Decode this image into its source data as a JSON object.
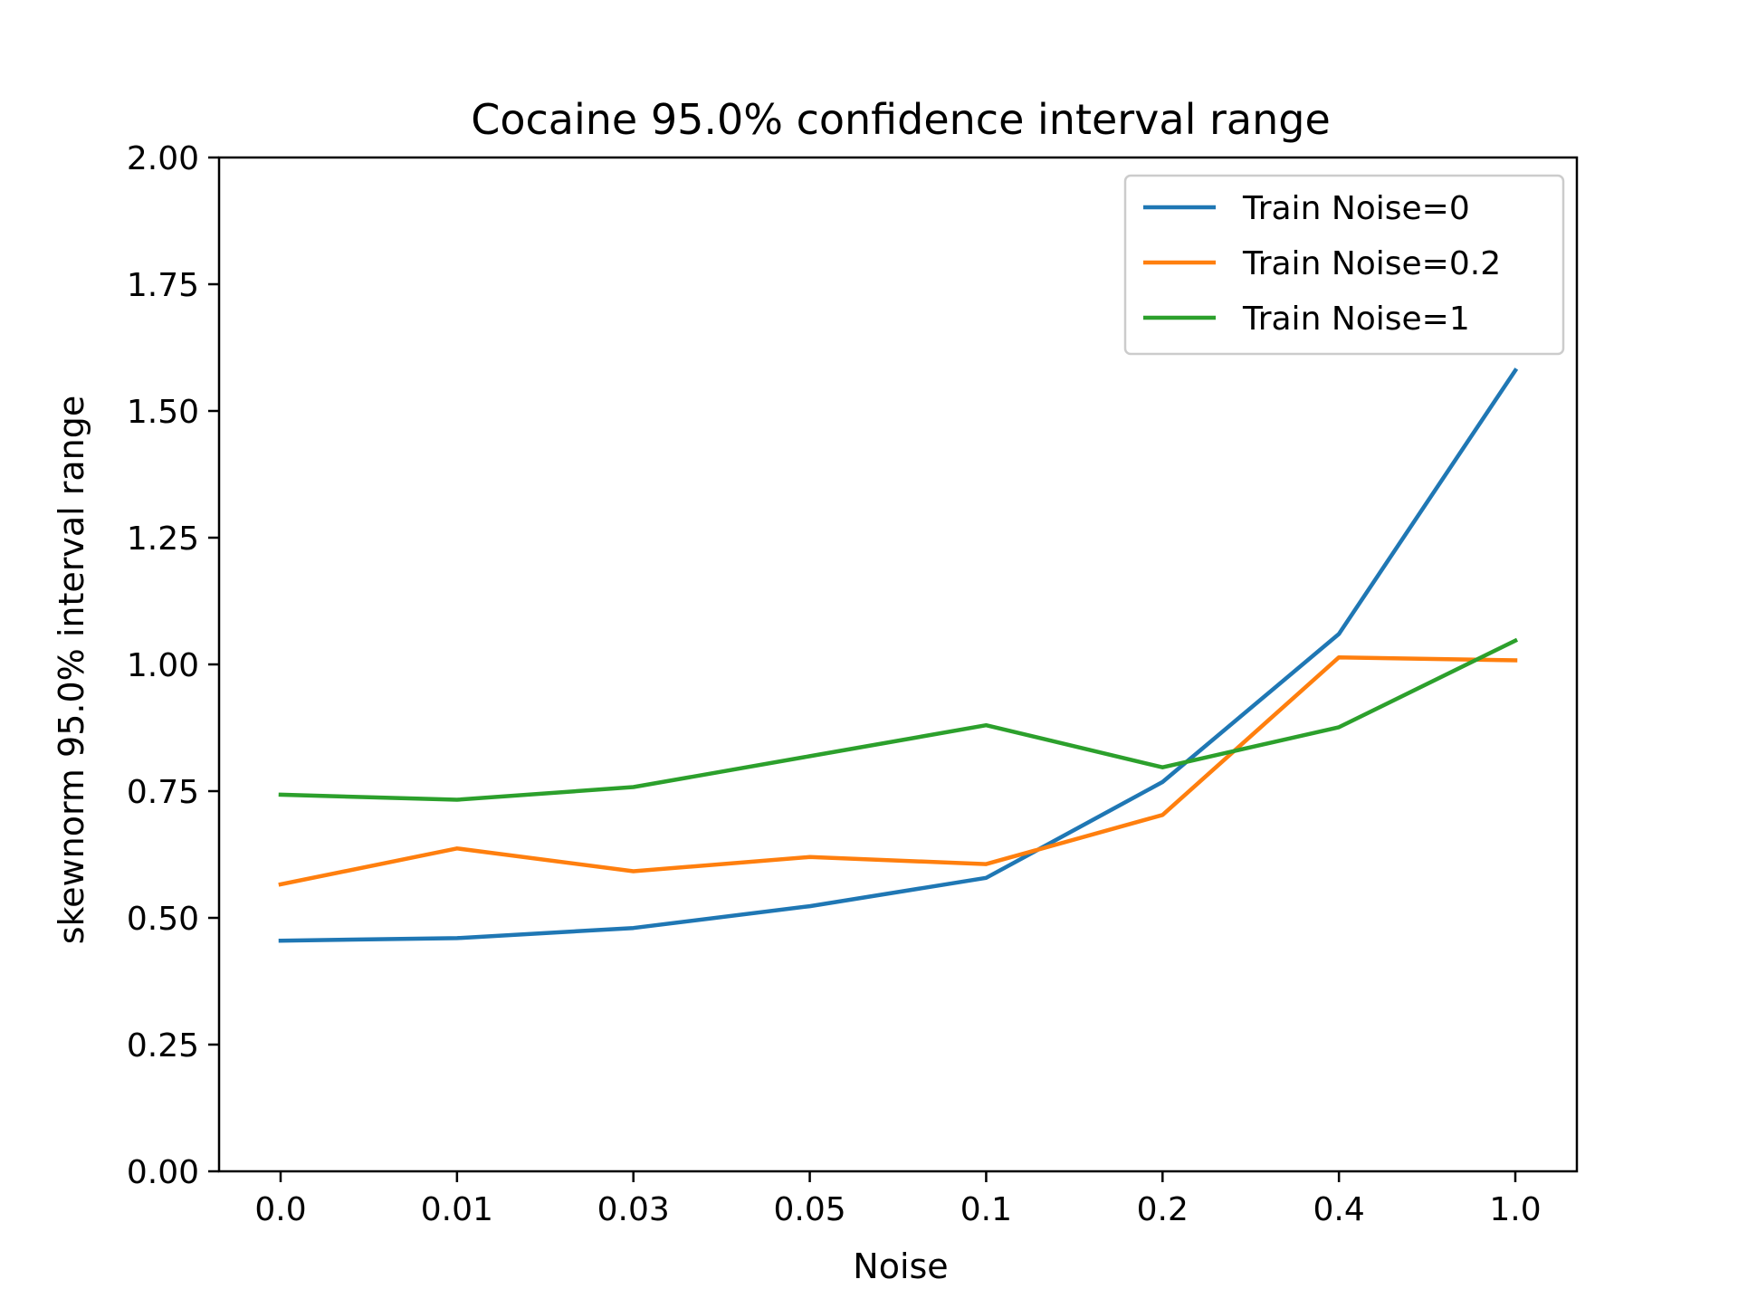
{
  "chart_data": {
    "type": "line",
    "title": "Cocaine 95.0% confidence interval range",
    "xlabel": "Noise",
    "ylabel": "skewnorm 95.0% interval range",
    "categories": [
      "0.0",
      "0.01",
      "0.03",
      "0.05",
      "0.1",
      "0.2",
      "0.4",
      "1.0"
    ],
    "ylim": [
      0,
      2
    ],
    "yticks": [
      "0.00",
      "0.25",
      "0.50",
      "0.75",
      "1.00",
      "1.25",
      "1.50",
      "1.75",
      "2.00"
    ],
    "grid": false,
    "legend_position": "top-right",
    "series": [
      {
        "name": "Train Noise=0",
        "color": "#1f77b4",
        "values": [
          0.455,
          0.46,
          0.48,
          0.523,
          0.579,
          0.768,
          1.06,
          1.58
        ]
      },
      {
        "name": "Train Noise=0.2",
        "color": "#ff7f0e",
        "values": [
          0.566,
          0.637,
          0.592,
          0.62,
          0.606,
          0.703,
          1.014,
          1.008
        ]
      },
      {
        "name": "Train Noise=1",
        "color": "#2ca02c",
        "values": [
          0.743,
          0.733,
          0.758,
          0.819,
          0.88,
          0.797,
          0.876,
          1.047
        ]
      }
    ]
  }
}
